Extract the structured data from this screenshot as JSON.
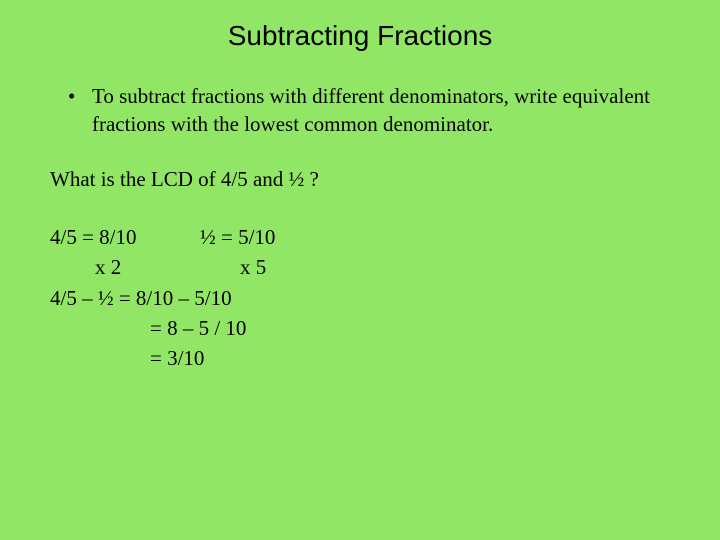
{
  "background_color": "#92e665",
  "text_color": "#000000",
  "title": {
    "text": "Subtracting Fractions",
    "font_family": "Comic Sans MS",
    "font_size_pt": 21
  },
  "bullet": {
    "text": "To subtract fractions with different denominators, write equivalent fractions with the lowest common denominator.",
    "font_family": "Times New Roman",
    "font_size_pt": 16
  },
  "question": {
    "text": "What is the LCD of 4/5 and ½ ?",
    "font_family": "Times New Roman",
    "font_size_pt": 16
  },
  "work": {
    "row1_col1": "4/5 = 8/10",
    "row1_col2": "½ = 5/10",
    "row2_col1": "x 2",
    "row2_col2": "x 5",
    "row3": "4/5 – ½   =   8/10 – 5/10",
    "row4": "= 8 – 5 / 10",
    "row5": "= 3/10",
    "font_family": "Times New Roman",
    "font_size_pt": 16
  }
}
